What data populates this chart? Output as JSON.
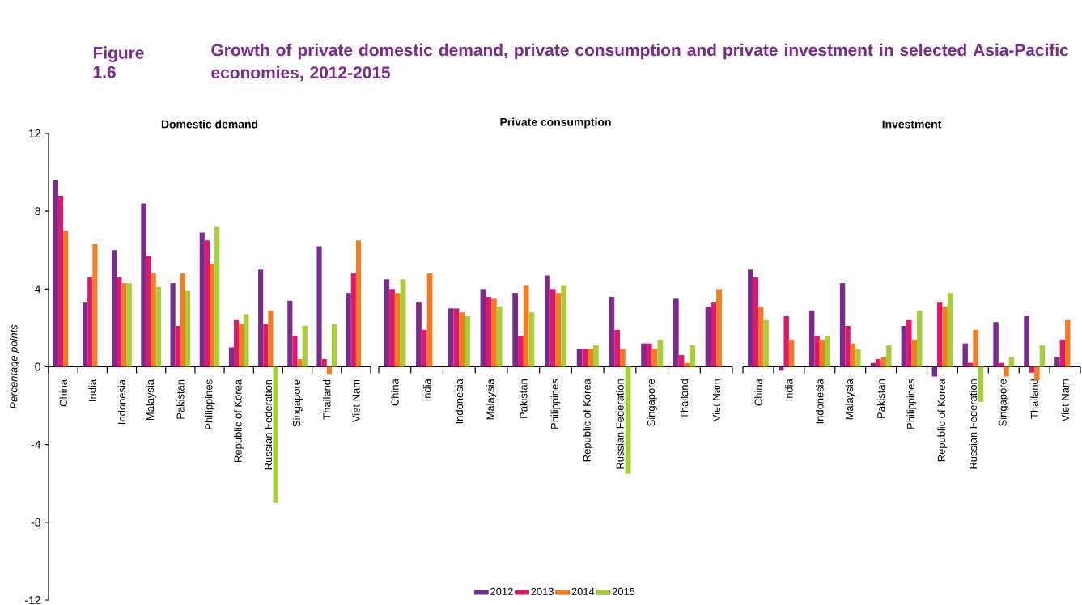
{
  "chart_data": [
    {
      "type": "bar",
      "title": "Domestic demand",
      "ylabel": "Percentage points",
      "annotations": [
        "Figure 1.6",
        "Growth of private domestic demand, private consumption and private investment in selected Asia-Pacific economies, 2012-2015"
      ],
      "categories": [
        "China",
        "India",
        "Indonesia",
        "Malaysia",
        "Pakistan",
        "Philippines",
        "Republic of Korea",
        "Russian Federation",
        "Singapore",
        "Thailand",
        "Viet Nam"
      ],
      "ylim": [
        -12,
        12
      ],
      "yticks": [
        -12,
        -8,
        -4,
        0,
        4,
        8,
        12
      ],
      "series": [
        {
          "color": "#7b2a8e",
          "values": [
            9.6,
            3.3,
            6.0,
            8.4,
            4.3,
            6.9,
            1.0,
            5.0,
            3.4,
            6.2,
            3.8
          ]
        },
        {
          "color": "#e0186c",
          "values": [
            8.8,
            4.6,
            4.6,
            5.7,
            2.1,
            6.5,
            2.4,
            2.2,
            1.6,
            0.4,
            4.8
          ]
        },
        {
          "color": "#f47b20",
          "values": [
            7.0,
            6.3,
            4.3,
            4.8,
            4.8,
            5.3,
            2.2,
            2.9,
            0.4,
            -0.4,
            6.5
          ]
        },
        {
          "color": "#a6ce39",
          "values": [
            null,
            null,
            4.3,
            4.1,
            3.9,
            7.2,
            2.7,
            -7.0,
            2.1,
            2.2,
            null
          ]
        }
      ]
    },
    {
      "type": "bar",
      "title": "Private consumption",
      "legend": "bottom",
      "tick_labels": "x",
      "categories": [
        "China",
        "India",
        "Indonesia",
        "Malaysia",
        "Pakistan",
        "Philippines",
        "Republic of Korea",
        "Russian Federation",
        "Singapore",
        "Thailand",
        "Viet Nam"
      ],
      "ylim": [
        -12,
        12
      ],
      "yticks": [
        -12,
        -8,
        -4,
        0,
        4,
        8,
        12
      ],
      "series": [
        {
          "name": "2012",
          "color": "#7b2a8e",
          "values": [
            4.5,
            3.3,
            3.0,
            4.0,
            3.8,
            4.7,
            0.9,
            3.6,
            1.2,
            3.5,
            3.1
          ]
        },
        {
          "name": "2013",
          "color": "#e0186c",
          "values": [
            4.0,
            1.9,
            3.0,
            3.6,
            1.6,
            4.0,
            0.9,
            1.9,
            1.2,
            0.6,
            3.3
          ]
        },
        {
          "name": "2014",
          "color": "#f47b20",
          "values": [
            3.8,
            4.8,
            2.8,
            3.5,
            4.2,
            3.8,
            0.9,
            0.9,
            0.9,
            0.2,
            4.0
          ]
        },
        {
          "name": "2015",
          "color": "#a6ce39",
          "values": [
            4.5,
            null,
            2.6,
            3.1,
            2.8,
            4.2,
            1.1,
            -5.5,
            1.4,
            1.1,
            null
          ]
        }
      ]
    },
    {
      "type": "bar",
      "title": "Investment",
      "tick_labels": "x",
      "categories": [
        "China",
        "India",
        "Indonesia",
        "Malaysia",
        "Pakistan",
        "Philippines",
        "Republic of Korea",
        "Russian Federation",
        "Singapore",
        "Thailand",
        "Viet Nam"
      ],
      "ylim": [
        -12,
        12
      ],
      "yticks": [
        -12,
        -8,
        -4,
        0,
        4,
        8,
        12
      ],
      "series": [
        {
          "color": "#7b2a8e",
          "values": [
            5.0,
            -0.2,
            2.9,
            4.3,
            0.2,
            2.1,
            -0.5,
            1.2,
            2.3,
            2.6,
            0.5
          ]
        },
        {
          "color": "#e0186c",
          "values": [
            4.6,
            2.6,
            1.6,
            2.1,
            0.4,
            2.4,
            3.3,
            0.2,
            0.2,
            -0.3,
            1.4
          ]
        },
        {
          "color": "#f47b20",
          "values": [
            3.1,
            1.4,
            1.4,
            1.2,
            0.5,
            1.4,
            3.1,
            1.9,
            -0.5,
            -0.7,
            2.4
          ]
        },
        {
          "color": "#a6ce39",
          "values": [
            2.4,
            null,
            1.6,
            0.9,
            1.1,
            2.9,
            3.8,
            -1.8,
            0.5,
            1.1,
            null
          ]
        }
      ]
    }
  ]
}
